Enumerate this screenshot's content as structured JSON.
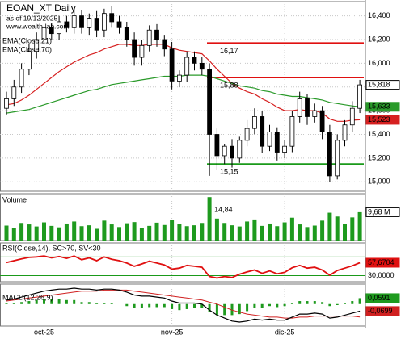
{
  "chart_data": [
    {
      "type": "candlestick",
      "title": "EOAN_XT Daily",
      "subtitle": "as of 19/12/2025",
      "source": "www.wealth-lab.com",
      "categories": [
        null,
        null,
        null,
        null,
        null,
        "oct-25",
        null,
        null,
        null,
        null,
        null,
        null,
        null,
        null,
        null,
        null,
        null,
        null,
        null,
        null,
        null,
        null,
        "nov-25",
        null,
        null,
        null,
        null,
        null,
        null,
        null,
        null,
        null,
        null,
        null,
        null,
        null,
        null,
        "dic-25",
        null,
        null,
        null,
        null,
        null,
        null,
        null,
        null,
        null,
        null
      ],
      "open": [
        15.62,
        15.7,
        15.8,
        15.95,
        16.1,
        16.2,
        16.3,
        16.25,
        16.35,
        16.3,
        16.4,
        16.3,
        16.38,
        16.28,
        16.42,
        16.35,
        16.3,
        16.2,
        16.05,
        16.15,
        16.28,
        16.2,
        16.12,
        15.85,
        15.9,
        16.05,
        16.0,
        15.95,
        15.4,
        15.22,
        15.3,
        15.2,
        15.35,
        15.45,
        15.55,
        15.3,
        15.42,
        15.25,
        15.3,
        15.55,
        15.7,
        15.55,
        15.6,
        15.42,
        15.05,
        15.35,
        15.48,
        15.62
      ],
      "high": [
        15.76,
        15.86,
        16.0,
        16.16,
        16.26,
        16.36,
        16.34,
        16.4,
        16.4,
        16.46,
        16.45,
        16.42,
        16.44,
        16.46,
        16.48,
        16.4,
        16.35,
        16.26,
        16.2,
        16.32,
        16.33,
        16.24,
        16.18,
        15.94,
        16.1,
        16.1,
        16.05,
        16.0,
        15.45,
        15.32,
        15.36,
        15.38,
        15.52,
        15.62,
        15.6,
        15.48,
        15.46,
        15.35,
        15.6,
        15.76,
        15.74,
        15.66,
        15.64,
        15.48,
        15.4,
        15.52,
        15.68,
        15.86
      ],
      "low": [
        15.56,
        15.64,
        15.75,
        15.9,
        16.04,
        16.14,
        16.2,
        16.2,
        16.26,
        16.25,
        16.25,
        16.24,
        16.22,
        16.22,
        16.3,
        16.25,
        16.14,
        15.98,
        15.98,
        16.1,
        16.14,
        16.06,
        15.78,
        15.8,
        15.84,
        15.94,
        15.9,
        15.05,
        15.1,
        15.15,
        15.12,
        15.16,
        15.3,
        15.4,
        15.24,
        15.26,
        15.18,
        15.2,
        15.25,
        15.5,
        15.48,
        15.5,
        15.36,
        15.0,
        15.02,
        15.3,
        15.42,
        15.58
      ],
      "close": [
        15.7,
        15.8,
        15.95,
        16.1,
        16.2,
        16.3,
        16.25,
        16.35,
        16.3,
        16.4,
        16.3,
        16.38,
        16.28,
        16.42,
        16.35,
        16.3,
        16.2,
        16.05,
        16.15,
        16.28,
        16.2,
        16.12,
        15.85,
        15.9,
        16.05,
        16.0,
        15.95,
        15.4,
        15.22,
        15.3,
        15.2,
        15.35,
        15.45,
        15.55,
        15.3,
        15.42,
        15.25,
        15.3,
        15.55,
        15.7,
        15.55,
        15.6,
        15.42,
        15.05,
        15.35,
        15.48,
        15.62,
        15.818
      ],
      "close_last_label": "15,818",
      "series": [
        {
          "name": "EMA(Close,21)",
          "color": "#d62020",
          "last_label": "15,523",
          "values": [
            15.65,
            15.66,
            15.69,
            15.73,
            15.78,
            15.83,
            15.88,
            15.93,
            15.97,
            16.01,
            16.04,
            16.07,
            16.09,
            16.12,
            16.14,
            16.16,
            16.16,
            16.15,
            16.15,
            16.16,
            16.16,
            16.16,
            16.13,
            16.11,
            16.1,
            16.09,
            16.08,
            16.02,
            15.95,
            15.89,
            15.83,
            15.79,
            15.76,
            15.74,
            15.7,
            15.67,
            15.63,
            15.6,
            15.6,
            15.61,
            15.6,
            15.6,
            15.58,
            15.53,
            15.51,
            15.51,
            15.52,
            15.523
          ]
        },
        {
          "name": "EMA(Close,70)",
          "color": "#2a9a2a",
          "last_label": "15,633",
          "values": [
            15.58,
            15.59,
            15.6,
            15.61,
            15.63,
            15.65,
            15.67,
            15.69,
            15.71,
            15.73,
            15.75,
            15.77,
            15.78,
            15.8,
            15.82,
            15.83,
            15.84,
            15.85,
            15.86,
            15.87,
            15.88,
            15.89,
            15.89,
            15.89,
            15.9,
            15.9,
            15.9,
            15.89,
            15.87,
            15.85,
            15.83,
            15.81,
            15.8,
            15.79,
            15.77,
            15.76,
            15.74,
            15.73,
            15.72,
            15.72,
            15.71,
            15.7,
            15.69,
            15.67,
            15.66,
            15.65,
            15.64,
            15.633
          ]
        }
      ],
      "levels": [
        {
          "value": 16.17,
          "label": "16,17",
          "color": "#e01010"
        },
        {
          "value": 15.88,
          "label": "15,88",
          "color": "#e01010"
        },
        {
          "value": 15.15,
          "label": "15,15",
          "color": "#1a9a1a"
        }
      ],
      "ylim": [
        14.92,
        16.52
      ],
      "yticks": [
        {
          "value": 15.0,
          "label": "15,000"
        },
        {
          "value": 15.2,
          "label": "15,200"
        },
        {
          "value": 15.4,
          "label": "15,400"
        },
        {
          "value": 15.6,
          "label": "15,600"
        },
        {
          "value": 15.8,
          "label": "15,800"
        },
        {
          "value": 16.0,
          "label": "16,000"
        },
        {
          "value": 16.2,
          "label": "16,200"
        },
        {
          "value": 16.4,
          "label": "16,400"
        }
      ],
      "grid": true
    },
    {
      "type": "bar",
      "title": "Volume",
      "color": "#1e9a1e",
      "values": [
        5.1,
        4.2,
        6.0,
        5.5,
        4.8,
        6.2,
        5.0,
        4.5,
        5.8,
        6.5,
        4.9,
        5.2,
        4.0,
        6.8,
        5.5,
        4.6,
        5.9,
        6.3,
        4.4,
        5.0,
        6.1,
        5.3,
        7.0,
        5.6,
        4.9,
        5.2,
        6.0,
        14.84,
        7.5,
        6.0,
        5.2,
        4.8,
        6.5,
        7.2,
        5.0,
        5.8,
        4.9,
        6.2,
        7.8,
        5.5,
        4.6,
        5.1,
        6.8,
        9.5,
        8.2,
        5.7,
        7.9,
        9.68
      ],
      "value_labels": [
        null,
        null,
        null,
        null,
        null,
        null,
        null,
        null,
        null,
        null,
        null,
        null,
        null,
        null,
        null,
        null,
        null,
        null,
        null,
        null,
        null,
        null,
        null,
        null,
        null,
        null,
        null,
        "14,84",
        null,
        null,
        null,
        null,
        null,
        null,
        null,
        null,
        null,
        null,
        null,
        null,
        null,
        null,
        null,
        null,
        null,
        null,
        null,
        null
      ],
      "last_label": "9,68 M",
      "ylim": [
        0,
        16
      ]
    },
    {
      "type": "line",
      "title": "RSI(Close,14), SC>70, SV<30",
      "color": "#e01010",
      "level_color": "#1a9a1a",
      "values": [
        58,
        62,
        66,
        69,
        70,
        72,
        68,
        71,
        67,
        72,
        64,
        68,
        62,
        70,
        65,
        62,
        57,
        50,
        55,
        61,
        57,
        53,
        44,
        46,
        52,
        50,
        48,
        28,
        25,
        28,
        26,
        33,
        38,
        42,
        35,
        40,
        34,
        37,
        47,
        52,
        46,
        48,
        42,
        31,
        41,
        46,
        51,
        57.6704
      ],
      "last_label": "57,6704",
      "levels": [
        70,
        30
      ],
      "ylim": [
        17,
        100
      ],
      "yticks": [
        {
          "value": 30,
          "label": "30,0000"
        }
      ]
    },
    {
      "type": "macd",
      "title": "MACD(12,26,9)",
      "macd_color": "#000000",
      "signal_color": "#d02020",
      "histogram_color": "#1e9a1e",
      "macd": [
        0.04,
        0.05,
        0.07,
        0.09,
        0.11,
        0.13,
        0.14,
        0.15,
        0.15,
        0.16,
        0.15,
        0.15,
        0.14,
        0.15,
        0.15,
        0.14,
        0.12,
        0.09,
        0.08,
        0.08,
        0.07,
        0.06,
        0.03,
        0.01,
        0.01,
        0.01,
        0.0,
        -0.06,
        -0.11,
        -0.14,
        -0.17,
        -0.18,
        -0.17,
        -0.15,
        -0.16,
        -0.15,
        -0.16,
        -0.16,
        -0.13,
        -0.1,
        -0.1,
        -0.09,
        -0.1,
        -0.14,
        -0.13,
        -0.11,
        -0.09,
        -0.0699
      ],
      "signal": [
        0.03,
        0.04,
        0.05,
        0.06,
        0.07,
        0.08,
        0.09,
        0.1,
        0.11,
        0.12,
        0.13,
        0.13,
        0.13,
        0.14,
        0.14,
        0.14,
        0.14,
        0.13,
        0.12,
        0.11,
        0.1,
        0.09,
        0.08,
        0.07,
        0.06,
        0.05,
        0.04,
        0.02,
        0.0,
        -0.03,
        -0.06,
        -0.08,
        -0.1,
        -0.11,
        -0.12,
        -0.13,
        -0.13,
        -0.14,
        -0.14,
        -0.13,
        -0.13,
        -0.12,
        -0.12,
        -0.12,
        -0.12,
        -0.12,
        -0.12,
        -0.129
      ],
      "histogram": [
        0.01,
        0.01,
        0.02,
        0.03,
        0.04,
        0.05,
        0.05,
        0.05,
        0.04,
        0.04,
        0.02,
        0.02,
        0.01,
        0.01,
        0.01,
        0,
        -0.02,
        -0.04,
        -0.04,
        -0.03,
        -0.03,
        -0.03,
        -0.05,
        -0.06,
        -0.05,
        -0.04,
        -0.04,
        -0.08,
        -0.11,
        -0.11,
        -0.11,
        -0.1,
        -0.07,
        -0.04,
        -0.04,
        -0.02,
        -0.03,
        -0.02,
        0.01,
        0.03,
        0.03,
        0.03,
        0.02,
        -0.02,
        -0.01,
        0.01,
        0.03,
        0.0591
      ],
      "macd_last_label": "-0,0699",
      "histogram_last_label": "0,0591",
      "ylim": [
        -0.22,
        0.2
      ]
    }
  ]
}
